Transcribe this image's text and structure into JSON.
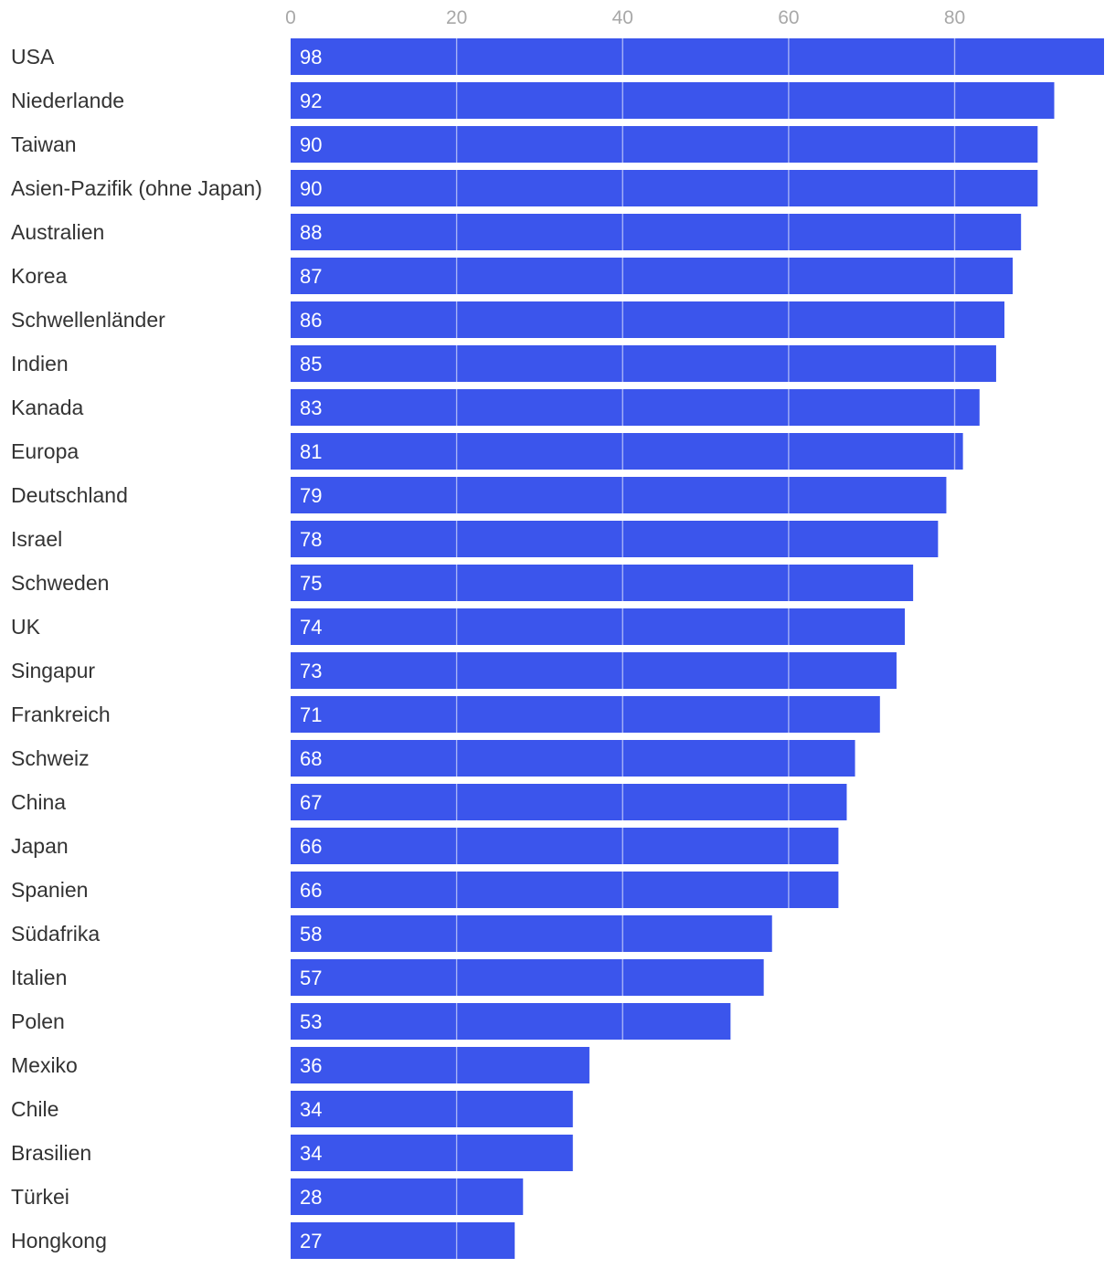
{
  "chart_data": {
    "type": "bar",
    "orientation": "horizontal",
    "title": "",
    "xlabel": "",
    "ylabel": "",
    "xlim": [
      0,
      98
    ],
    "xticks": [
      0,
      20,
      40,
      60,
      80
    ],
    "grid": true,
    "bar_color": "#3b55ec",
    "categories": [
      "USA",
      "Niederlande",
      "Taiwan",
      "Asien-Pazifik (ohne Japan)",
      "Australien",
      "Korea",
      "Schwellenländer",
      "Indien",
      "Kanada",
      "Europa",
      "Deutschland",
      "Israel",
      "Schweden",
      "UK",
      "Singapur",
      "Frankreich",
      "Schweiz",
      "China",
      "Japan",
      "Spanien",
      "Südafrika",
      "Italien",
      "Polen",
      "Mexiko",
      "Chile",
      "Brasilien",
      "Türkei",
      "Hongkong"
    ],
    "values": [
      98,
      92,
      90,
      90,
      88,
      87,
      86,
      85,
      83,
      81,
      79,
      78,
      75,
      74,
      73,
      71,
      68,
      67,
      66,
      66,
      58,
      57,
      53,
      36,
      34,
      34,
      28,
      27
    ]
  }
}
